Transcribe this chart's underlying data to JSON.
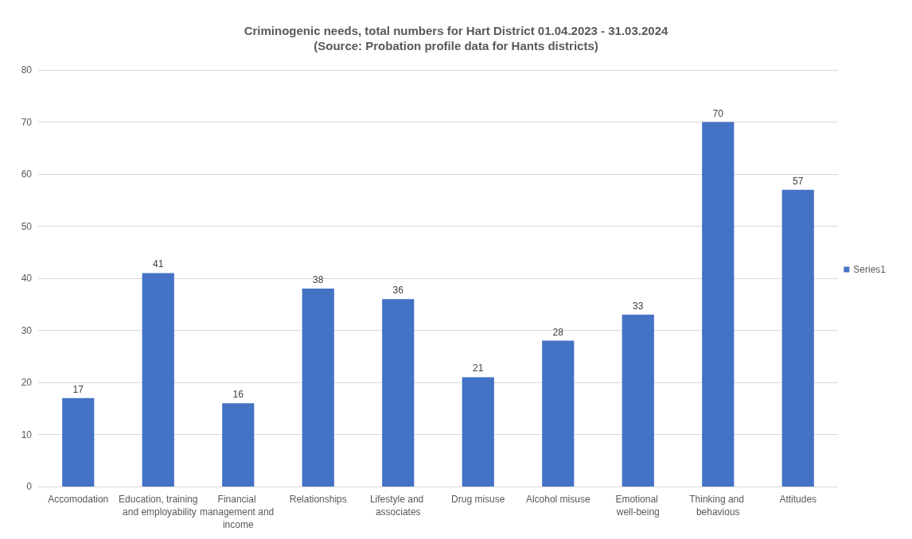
{
  "chart_data": {
    "type": "bar",
    "title": "Criminogenic needs, total numbers for Hart District 01.04.2023 - 31.03.2024",
    "subtitle": "(Source: Probation profile data for Hants districts)",
    "categories": [
      "Accomodation",
      "Education, training and employability",
      "Financial management and income",
      "Relationships",
      "Lifestyle and associates",
      "Drug misuse",
      "Alcohol misuse",
      "Emotional well-being",
      "Thinking and behavious",
      "Attitudes"
    ],
    "series": [
      {
        "name": "Series1",
        "color": "#4472c4",
        "values": [
          17,
          41,
          16,
          38,
          36,
          21,
          28,
          33,
          70,
          57
        ]
      }
    ],
    "ylim": [
      0,
      80
    ],
    "yticks": [
      0,
      10,
      20,
      30,
      40,
      50,
      60,
      70,
      80
    ],
    "grid": "y",
    "legend": "right",
    "data_labels": true
  }
}
